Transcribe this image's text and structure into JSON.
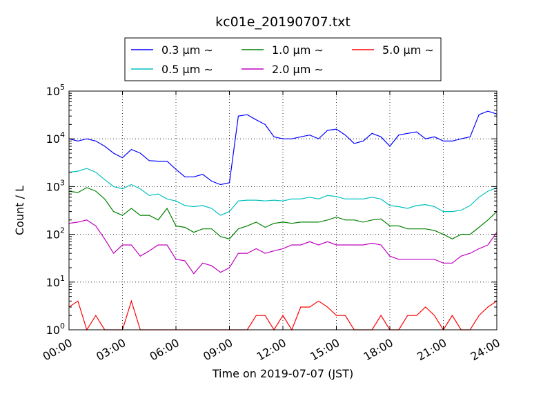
{
  "chart_data": {
    "type": "line",
    "title": "kc01e_20190707.txt",
    "xlabel": "Time on 2019-07-07 (JST)",
    "ylabel": "Count / L",
    "xlim": [
      "00:00",
      "24:00"
    ],
    "ylim": [
      1,
      100000
    ],
    "yscale": "log",
    "grid": true,
    "legend_position": "top-center",
    "x_ticks": [
      "00:00",
      "03:00",
      "06:00",
      "09:00",
      "12:00",
      "15:00",
      "18:00",
      "21:00",
      "24:00"
    ],
    "y_ticks": [
      {
        "base": "10",
        "exp": "0"
      },
      {
        "base": "10",
        "exp": "1"
      },
      {
        "base": "10",
        "exp": "2"
      },
      {
        "base": "10",
        "exp": "3"
      },
      {
        "base": "10",
        "exp": "4"
      },
      {
        "base": "10",
        "exp": "5"
      }
    ],
    "x_hours": [
      0,
      0.5,
      1,
      1.5,
      2,
      2.5,
      3,
      3.5,
      4,
      4.5,
      5,
      5.5,
      6,
      6.5,
      7,
      7.5,
      8,
      8.5,
      9,
      9.5,
      10,
      10.5,
      11,
      11.5,
      12,
      12.5,
      13,
      13.5,
      14,
      14.5,
      15,
      15.5,
      16,
      16.5,
      17,
      17.5,
      18,
      18.5,
      19,
      19.5,
      20,
      20.5,
      21,
      21.5,
      22,
      22.5,
      23,
      23.5,
      24
    ],
    "series": [
      {
        "name": "0.3 μm ∼",
        "color": "#0000ff",
        "values": [
          10000,
          9000,
          10000,
          9000,
          7000,
          5000,
          4000,
          6000,
          5000,
          3500,
          3400,
          3400,
          2300,
          1600,
          1600,
          1800,
          1300,
          1100,
          1200,
          30000,
          32000,
          25000,
          20000,
          11000,
          10000,
          10000,
          11000,
          12000,
          10000,
          15000,
          16000,
          12000,
          8000,
          9000,
          13000,
          11000,
          7000,
          12000,
          13000,
          14000,
          10000,
          11000,
          9000,
          9000,
          10000,
          11000,
          32000,
          38000,
          33000
        ]
      },
      {
        "name": "0.5 μm ∼",
        "color": "#00bfbf",
        "values": [
          2000,
          2100,
          2400,
          2000,
          1400,
          1000,
          900,
          1100,
          900,
          650,
          700,
          550,
          500,
          400,
          380,
          400,
          350,
          250,
          300,
          500,
          520,
          520,
          500,
          520,
          500,
          550,
          550,
          600,
          550,
          650,
          620,
          550,
          550,
          550,
          600,
          550,
          400,
          380,
          350,
          400,
          420,
          380,
          300,
          300,
          320,
          400,
          600,
          800,
          950
        ]
      },
      {
        "name": "1.0 μm ∼",
        "color": "#008000",
        "values": [
          800,
          750,
          950,
          800,
          550,
          300,
          250,
          350,
          250,
          250,
          200,
          350,
          150,
          140,
          110,
          130,
          130,
          90,
          80,
          130,
          150,
          180,
          140,
          170,
          180,
          170,
          180,
          180,
          180,
          200,
          230,
          200,
          200,
          180,
          200,
          210,
          150,
          150,
          130,
          130,
          130,
          120,
          100,
          80,
          100,
          100,
          140,
          200,
          300
        ]
      },
      {
        "name": "2.0 μm ∼",
        "color": "#bf00bf",
        "values": [
          170,
          180,
          200,
          150,
          80,
          40,
          60,
          60,
          35,
          45,
          60,
          60,
          30,
          28,
          15,
          25,
          22,
          16,
          20,
          40,
          40,
          50,
          40,
          45,
          50,
          60,
          60,
          70,
          60,
          70,
          60,
          60,
          60,
          60,
          65,
          60,
          35,
          30,
          30,
          30,
          30,
          30,
          25,
          25,
          35,
          40,
          50,
          60,
          110
        ]
      },
      {
        "name": "5.0 μm ∼",
        "color": "#ff0000",
        "values": [
          3,
          4,
          1,
          2,
          1,
          1,
          1,
          4,
          1,
          1,
          1,
          1,
          1,
          1,
          1,
          1,
          1,
          1,
          1,
          1,
          1,
          2,
          2,
          1,
          2,
          1,
          3,
          3,
          4,
          3,
          2,
          2,
          1,
          1,
          1,
          2,
          1,
          1,
          2,
          2,
          3,
          2,
          1,
          2,
          1,
          1,
          2,
          3,
          4
        ]
      }
    ]
  }
}
